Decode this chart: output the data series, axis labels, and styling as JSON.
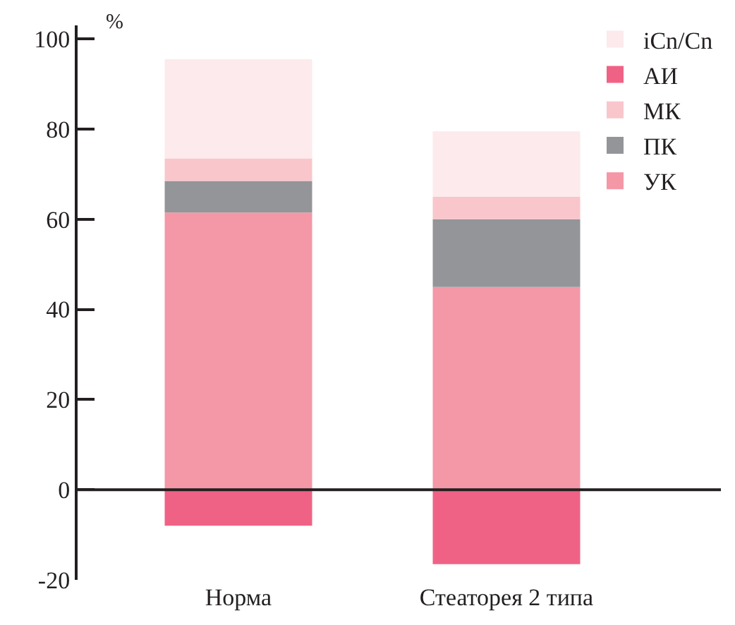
{
  "chart_data": {
    "type": "bar",
    "stacked": true,
    "ylabel": "%",
    "categories": [
      "Норма",
      "Стеаторея 2 типа"
    ],
    "series": [
      {
        "name": "УК",
        "color": "#f497a7",
        "values": [
          61.5,
          45
        ]
      },
      {
        "name": "ПК",
        "color": "#939598",
        "values": [
          7,
          15
        ]
      },
      {
        "name": "МК",
        "color": "#f9c6cc",
        "values": [
          5,
          5
        ]
      },
      {
        "name": "АИ",
        "color": "#f06285",
        "values": [
          -8,
          -16.5
        ]
      },
      {
        "name": "iCn/Cn",
        "color": "#fdeaec",
        "values": [
          22,
          14.5
        ]
      }
    ],
    "ylim": [
      -20,
      103
    ],
    "yticks": [
      -20,
      0,
      20,
      40,
      60,
      80,
      100
    ],
    "ref_lines": [
      {
        "axis": "y",
        "value": 0,
        "color": "#231f20"
      }
    ],
    "legend": "top right"
  }
}
